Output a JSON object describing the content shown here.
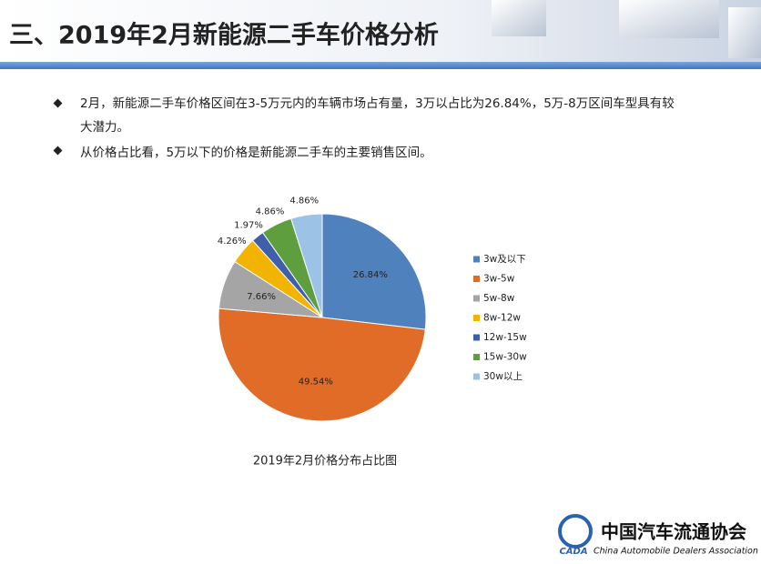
{
  "header": {
    "title": "三、2019年2月新能源二手车价格分析"
  },
  "bullets": [
    "2月，新能源二手车价格区间在3-5万元内的车辆市场占有量，3万以占比为26.84%，5万-8万区间车型具有较大潜力。",
    "从价格占比看，5万以下的价格是新能源二手车的主要销售区间。"
  ],
  "chart_data": {
    "type": "pie",
    "title": "2019年2月价格分布占比图",
    "categories": [
      "3w及以下",
      "3w-5w",
      "5w-8w",
      "8w-12w",
      "12w-15w",
      "15w-30w",
      "30w以上"
    ],
    "values": [
      26.84,
      49.54,
      7.66,
      4.26,
      1.97,
      4.86,
      4.86
    ],
    "value_labels": [
      "26.84%",
      "49.54%",
      "7.66%",
      "4.26%",
      "1.97%",
      "4.86%",
      "4.86%"
    ],
    "colors": [
      "#4f81bd",
      "#e06c28",
      "#a5a5a5",
      "#f2b400",
      "#3f5faa",
      "#5e9e3f",
      "#9cc2e5"
    ],
    "legend": "right"
  },
  "logo": {
    "mark": "CADA",
    "name": "中国汽车流通协会",
    "english": "China Automobile Dealers Association"
  }
}
